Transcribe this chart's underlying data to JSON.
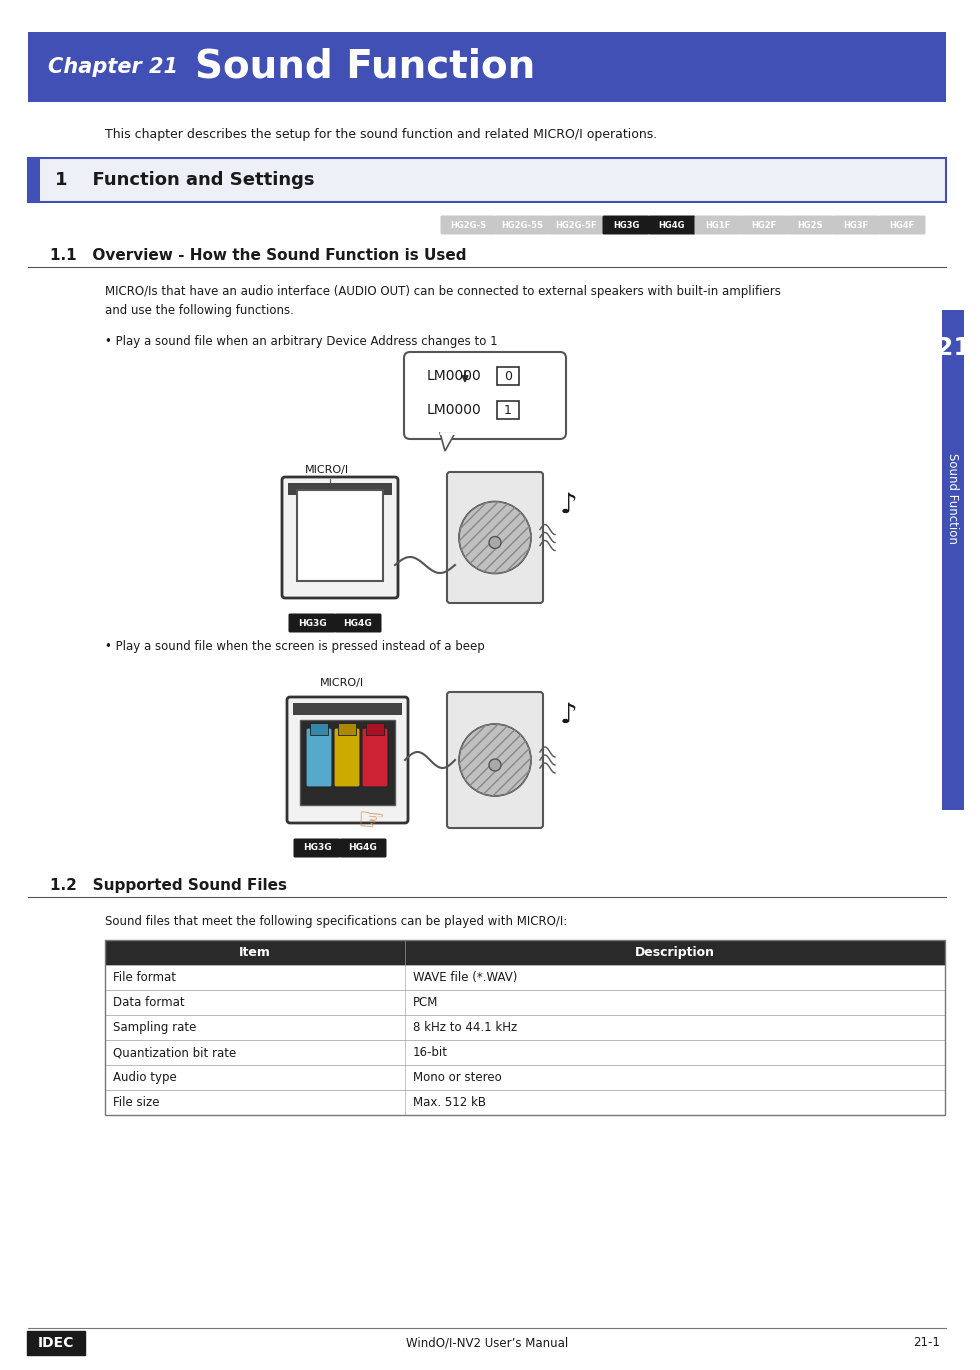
{
  "title_chapter": "Chapter 21",
  "title_main": "Sound Function",
  "title_bg_color": "#4050b5",
  "title_text_color": "#ffffff",
  "section1_title": "1    Function and Settings",
  "section1_bg": "#eef0f8",
  "section1_border": "#4050b5",
  "subsection1_title": "1.1   Overview - How the Sound Function is Used",
  "subsection2_title": "1.2   Supported Sound Files",
  "intro_text": "This chapter describes the setup for the sound function and related MICRO/I operations.",
  "body_text1": "MICRO/Is that have an audio interface (AUDIO OUT) can be connected to external speakers with built-in amplifiers\nand use the following functions.",
  "bullet1": "• Play a sound file when an arbitrary Device Address changes to 1",
  "bullet2": "• Play a sound file when the screen is pressed instead of a beep",
  "tags": [
    "HG2G-S",
    "HG2G-5S",
    "HG2G-5F",
    "HG3G",
    "HG4G",
    "HG1F",
    "HG2F",
    "HG2S",
    "HG3F",
    "HG4F"
  ],
  "tags_highlighted": [
    "HG3G",
    "HG4G"
  ],
  "tag_bg_normal": "#c8c8c8",
  "tag_bg_dark": "#1a1a1a",
  "sound_files_label": "Sound files that meet the following specifications can be played with MICRO/I:",
  "table_headers": [
    "Item",
    "Description"
  ],
  "table_rows": [
    [
      "File format",
      "WAVE file (*.WAV)"
    ],
    [
      "Data format",
      "PCM"
    ],
    [
      "Sampling rate",
      "8 kHz to 44.1 kHz"
    ],
    [
      "Quantization bit rate",
      "16-bit"
    ],
    [
      "Audio type",
      "Mono or stereo"
    ],
    [
      "File size",
      "Max. 512 kB"
    ]
  ],
  "sidebar_number": "21",
  "sidebar_text": "Sound Function",
  "sidebar_bg": "#4050b5",
  "footer_logo": "IDEC",
  "footer_manual": "WindO/I-NV2 User’s Manual",
  "footer_page": "21-1",
  "bg_color": "#ffffff"
}
